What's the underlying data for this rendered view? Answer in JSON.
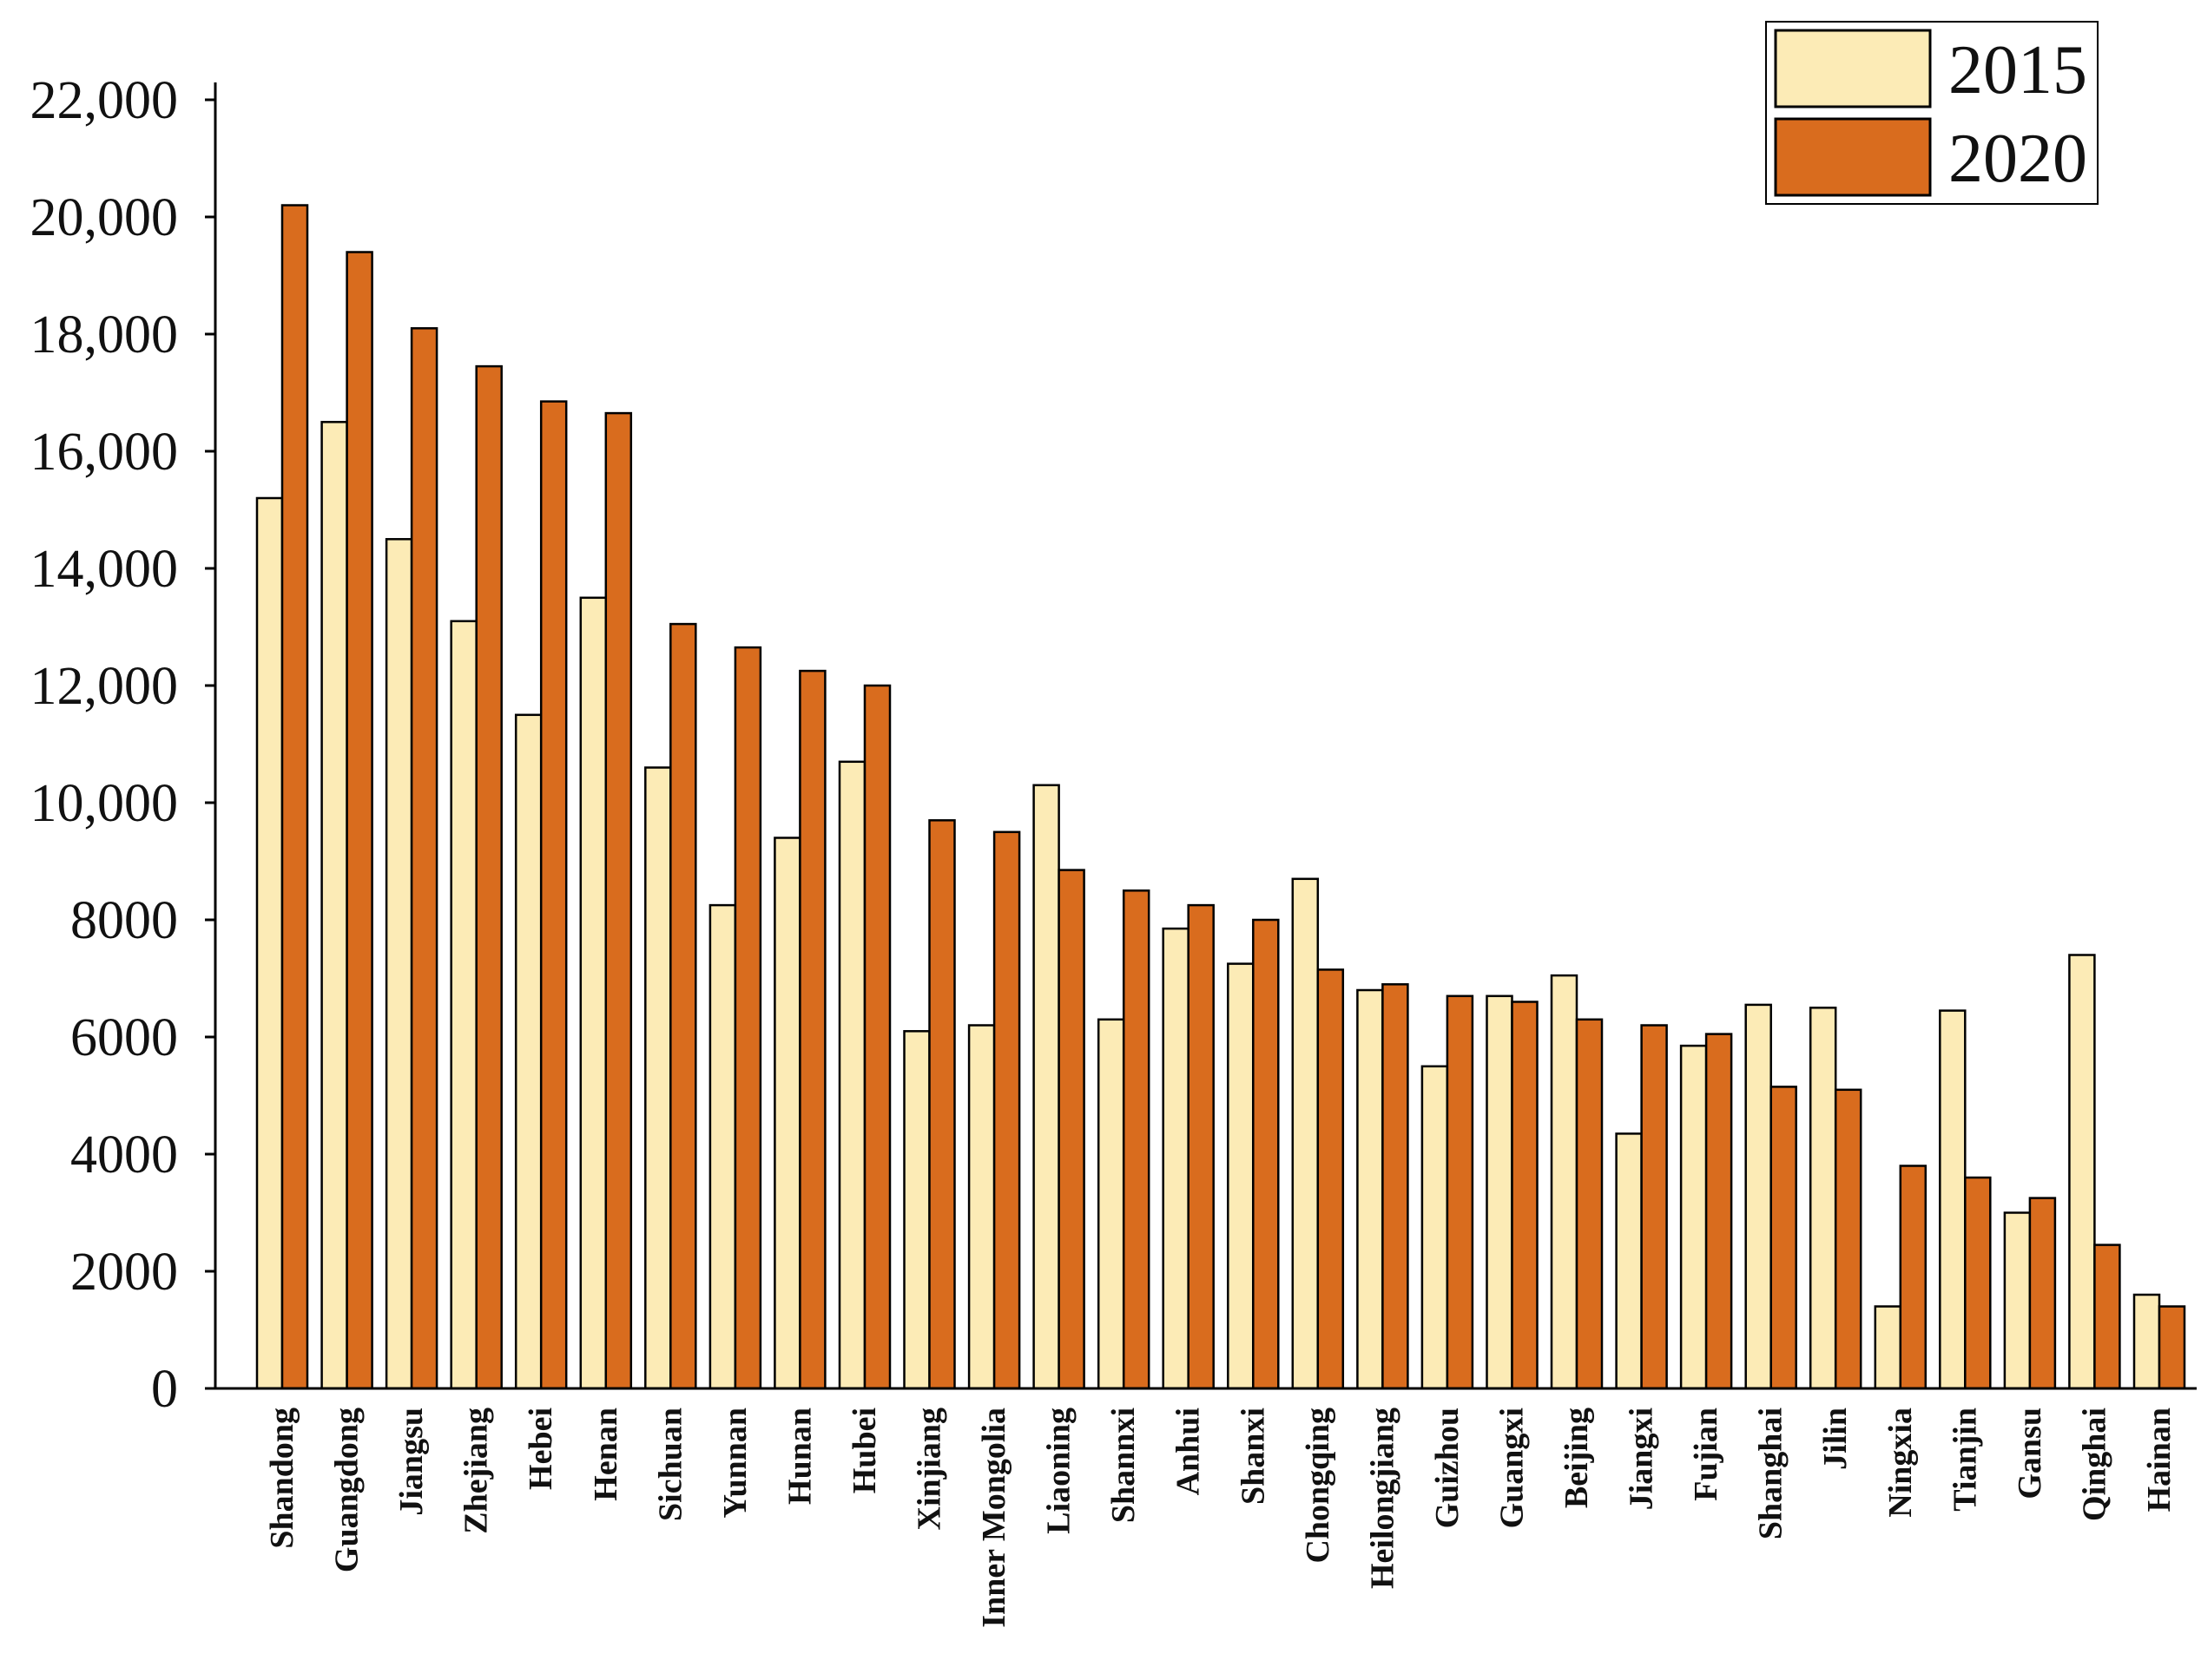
{
  "chart_data": {
    "type": "bar",
    "title": "",
    "xlabel": "",
    "ylabel": "",
    "ylim": [
      0,
      22000
    ],
    "yticks": [
      0,
      2000,
      4000,
      6000,
      8000,
      10000,
      12000,
      14000,
      16000,
      18000,
      20000,
      22000
    ],
    "ytick_labels": [
      "0",
      "2000",
      "4000",
      "6000",
      "8000",
      "10,000",
      "12,000",
      "14,000",
      "16,000",
      "18,000",
      "20,000",
      "22,000"
    ],
    "legend_position": "top-right",
    "grid": false,
    "categories": [
      "Shandong",
      "Guangdong",
      "Jiangsu",
      "Zhejiang",
      "Hebei",
      "Henan",
      "Sichuan",
      "Yunnan",
      "Hunan",
      "Hubei",
      "Xinjiang",
      "Inner Mongolia",
      "Liaoning",
      "Shannxi",
      "Anhui",
      "Shanxi",
      "Chongqing",
      "Heilongjiang",
      "Guizhou",
      "Guangxi",
      "Beijing",
      "Jiangxi",
      "Fujian",
      "Shanghai",
      "Jilin",
      "Ningxia",
      "Tianjin",
      "Gansu",
      "Qinghai",
      "Hainan"
    ],
    "series": [
      {
        "name": "2015",
        "color": "#FCEBB6",
        "values": [
          15200,
          16500,
          14500,
          13100,
          11500,
          13500,
          10600,
          8250,
          9400,
          10700,
          6100,
          6200,
          10300,
          6300,
          7850,
          7250,
          8700,
          6800,
          5500,
          6700,
          7050,
          4350,
          5850,
          6550,
          6500,
          1400,
          6450,
          3000,
          7400,
          1600
        ]
      },
      {
        "name": "2020",
        "color": "#D96C1E",
        "values": [
          20200,
          19400,
          18100,
          17450,
          16850,
          16650,
          13050,
          12650,
          12250,
          12000,
          9700,
          9500,
          8850,
          8500,
          8250,
          8000,
          7150,
          6900,
          6700,
          6600,
          6300,
          6200,
          6050,
          5150,
          5100,
          3800,
          3600,
          3250,
          2450,
          1400
        ]
      }
    ]
  }
}
